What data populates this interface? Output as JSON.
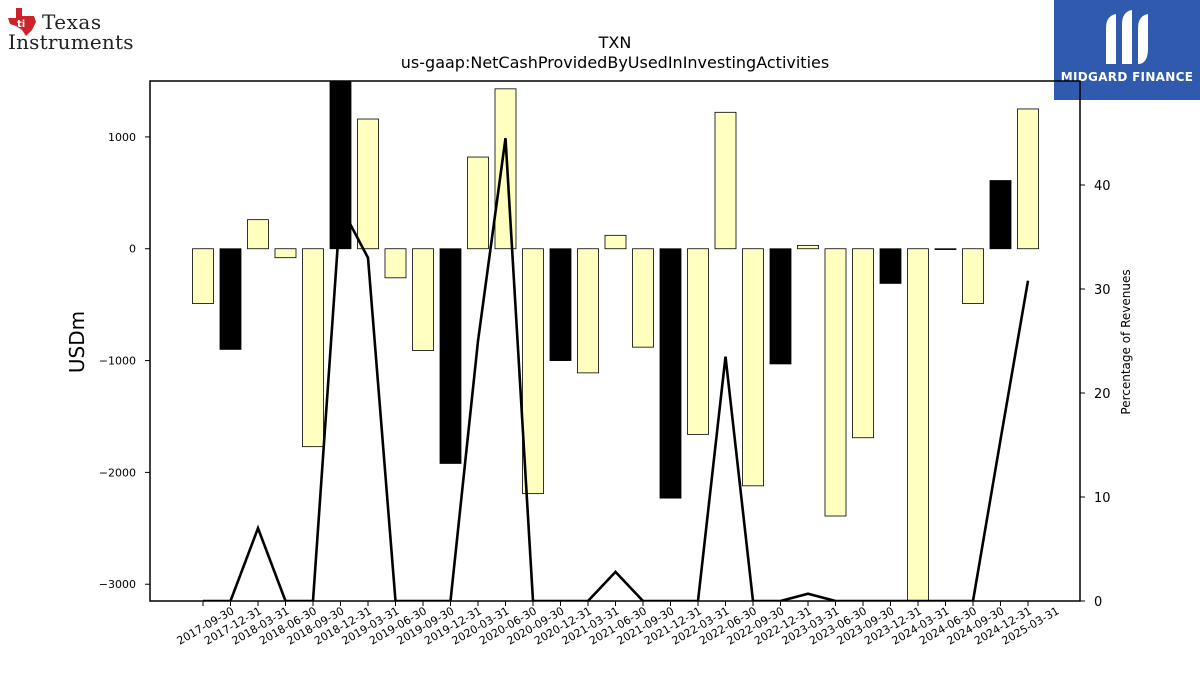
{
  "logos": {
    "left_brand": "Texas Instruments",
    "left_line1": "Texas",
    "left_line2": "Instruments",
    "right_brand": "MIDGARD FINANCE"
  },
  "colors": {
    "bar_light": "#ffffc0",
    "bar_dark": "#000000",
    "line": "#000000",
    "brand_blue": "#2f5aad",
    "ti_red": "#cc2229"
  },
  "chart_data": {
    "type": "bar",
    "title": "TXN",
    "subtitle": "us-gaap:NetCashProvidedByUsedInInvestingActivities",
    "ylabel": "USDm",
    "y2label": "Percentage of Revenues",
    "ylim": [
      -3150,
      1500
    ],
    "y2lim": [
      0,
      50
    ],
    "yticks": [
      -3000,
      -2000,
      -1000,
      0,
      1000
    ],
    "ytick_labels": [
      "−3000",
      "−2000",
      "−1000",
      "0",
      "1000"
    ],
    "y2ticks": [
      0,
      10,
      20,
      30,
      40
    ],
    "y2tick_labels": [
      "0",
      "10",
      "20",
      "30",
      "40"
    ],
    "categories": [
      "2017-09-30",
      "2017-12-31",
      "2018-03-31",
      "2018-06-30",
      "2018-09-30",
      "2018-12-31",
      "2019-03-31",
      "2019-06-30",
      "2019-09-30",
      "2019-12-31",
      "2020-03-31",
      "2020-06-30",
      "2020-09-30",
      "2020-12-31",
      "2021-03-31",
      "2021-06-30",
      "2021-09-30",
      "2021-12-31",
      "2022-03-31",
      "2022-06-30",
      "2022-09-30",
      "2022-12-31",
      "2023-03-31",
      "2023-06-30",
      "2023-09-30",
      "2023-12-31",
      "2024-03-31",
      "2024-06-30",
      "2024-09-30",
      "2024-12-31",
      "2025-03-31"
    ],
    "values": [
      -490,
      -900,
      260,
      -80,
      -1770,
      1500,
      1160,
      -260,
      -910,
      -1920,
      820,
      1430,
      -2190,
      -1000,
      -1110,
      120,
      -880,
      -2230,
      -1660,
      1220,
      -2120,
      -1030,
      30,
      -2390,
      -1690,
      -310,
      -3200,
      0,
      -490,
      610,
      1250
    ],
    "dark": [
      false,
      true,
      false,
      false,
      false,
      true,
      false,
      false,
      false,
      true,
      false,
      false,
      false,
      true,
      false,
      false,
      false,
      true,
      false,
      false,
      false,
      true,
      false,
      false,
      false,
      true,
      false,
      false,
      false,
      true,
      false
    ],
    "series": [
      {
        "name": "",
        "axis": "right",
        "values": [
          0,
          0,
          7,
          0,
          0,
          38,
          33,
          0,
          0,
          0,
          25,
          44.5,
          0,
          0,
          0,
          2.8,
          0,
          0,
          0,
          23.5,
          0,
          0,
          0.7,
          0,
          0,
          0,
          0,
          0,
          0,
          15.5,
          30.8
        ]
      }
    ],
    "grid": false,
    "legend": "none"
  }
}
